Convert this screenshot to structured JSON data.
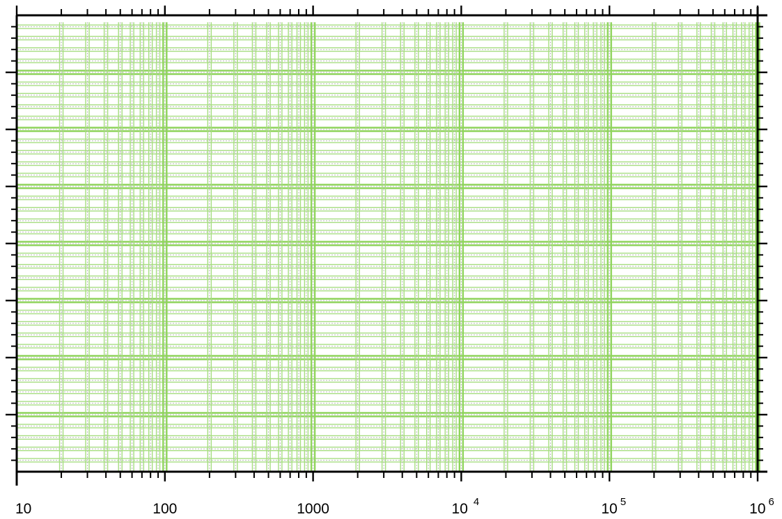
{
  "chart_data": {
    "type": "line",
    "title": "",
    "xlabel": "",
    "ylabel": "",
    "x_scale": "log",
    "xlim": [
      10,
      1000000
    ],
    "grid": true,
    "series": [],
    "x_tick_labels": [
      {
        "value": 10,
        "base": "10",
        "exponent": ""
      },
      {
        "value": 100,
        "base": "100",
        "exponent": ""
      },
      {
        "value": 1000,
        "base": "1000",
        "exponent": ""
      },
      {
        "value": 10000,
        "base": "10",
        "exponent": "4"
      },
      {
        "value": 100000,
        "base": "10",
        "exponent": "5"
      },
      {
        "value": 1000000,
        "base": "10",
        "exponent": "6"
      }
    ],
    "y_tick_labels": [],
    "colors": {
      "grid_major": "#8fd45c",
      "grid_minor": "#a6dd80",
      "grid_dotted": "#b9b9b9",
      "axis": "#000000"
    }
  }
}
